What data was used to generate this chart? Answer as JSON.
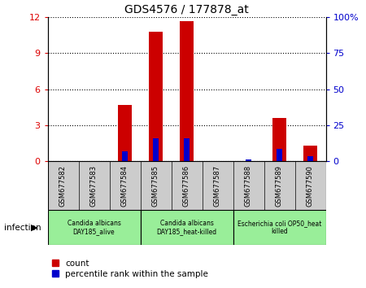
{
  "title": "GDS4576 / 177878_at",
  "samples": [
    "GSM677582",
    "GSM677583",
    "GSM677584",
    "GSM677585",
    "GSM677586",
    "GSM677587",
    "GSM677588",
    "GSM677589",
    "GSM677590"
  ],
  "count_values": [
    0.0,
    0.0,
    4.7,
    10.8,
    11.7,
    0.0,
    0.0,
    3.6,
    1.3
  ],
  "percentile_values": [
    0.0,
    0.0,
    7.0,
    16.0,
    16.0,
    0.0,
    1.0,
    8.5,
    3.5
  ],
  "left_ylim": [
    0,
    12
  ],
  "right_ylim": [
    0,
    100
  ],
  "left_yticks": [
    0,
    3,
    6,
    9,
    12
  ],
  "right_yticks": [
    0,
    25,
    50,
    75,
    100
  ],
  "left_ytick_labels": [
    "0",
    "3",
    "6",
    "9",
    "12"
  ],
  "right_ytick_labels": [
    "0",
    "25",
    "50",
    "75",
    "100%"
  ],
  "bar_color_count": "#cc0000",
  "bar_color_percentile": "#0000cc",
  "groups": [
    {
      "label": "Candida albicans\nDAY185_alive",
      "start": 0,
      "end": 3
    },
    {
      "label": "Candida albicans\nDAY185_heat-killed",
      "start": 3,
      "end": 6
    },
    {
      "label": "Escherichia coli OP50_heat\nkilled",
      "start": 6,
      "end": 9
    }
  ],
  "group_bg_color": "#99ee99",
  "sample_bg_color": "#cccccc",
  "xlabel_infection": "infection",
  "legend_count_label": "count",
  "legend_percentile_label": "percentile rank within the sample",
  "right_ytick_labels_full": [
    "0",
    "25",
    "50",
    "75",
    "100%"
  ]
}
